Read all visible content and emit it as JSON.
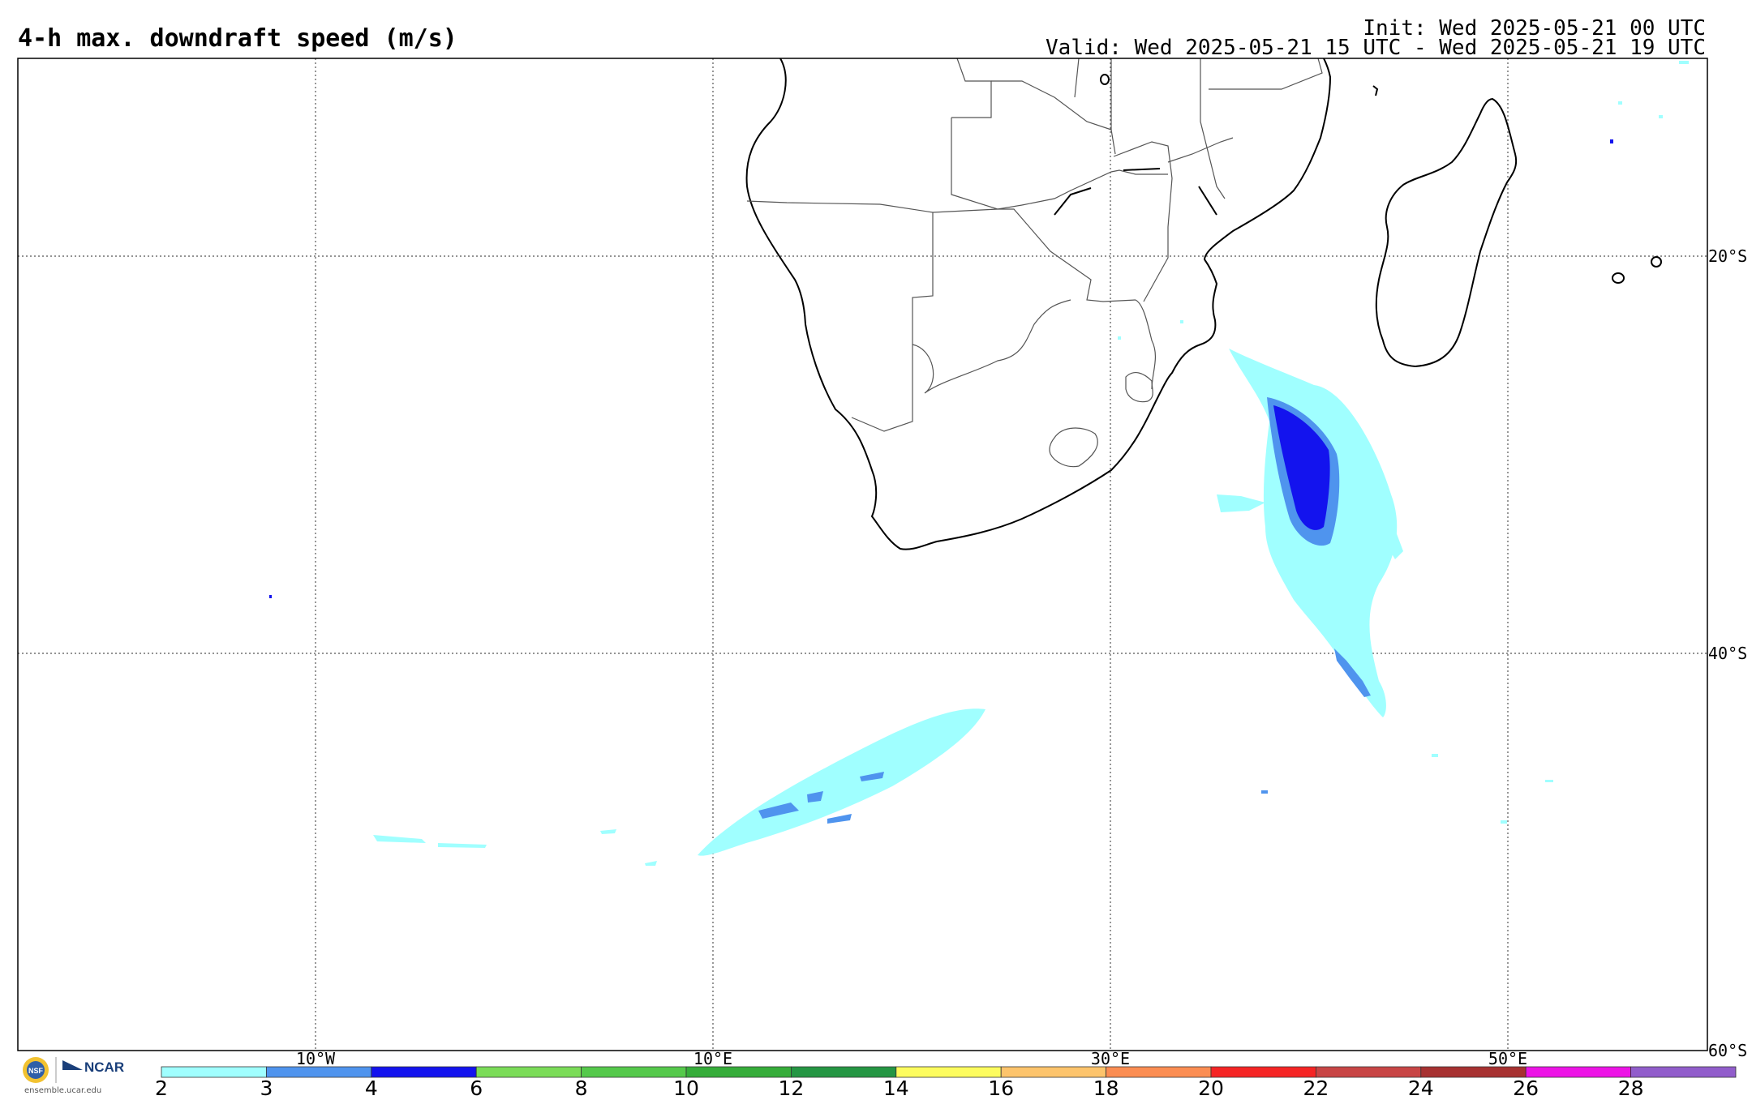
{
  "header": {
    "title": "4-h max. downdraft speed (m/s)",
    "init": "Init: Wed 2025-05-21 00 UTC",
    "valid": "Valid: Wed 2025-05-21 15 UTC - Wed 2025-05-21 19 UTC"
  },
  "map": {
    "lat_labels": [
      "20°S",
      "40°S",
      "60°S"
    ],
    "lon_labels": [
      "10°W",
      "10°E",
      "30°E",
      "50°E"
    ],
    "grid": "dotted",
    "land_outline": "black",
    "features": [
      "southern-africa-coastline",
      "madagascar",
      "country-borders",
      "downdraft-swath-mozambique-channel",
      "downdraft-swath-south-atlantic"
    ]
  },
  "colorbar": {
    "ticks": [
      "2",
      "3",
      "4",
      "6",
      "8",
      "10",
      "12",
      "14",
      "16",
      "18",
      "20",
      "22",
      "24",
      "26",
      "28"
    ],
    "colors": [
      "#a0ffff",
      "#4f94ee",
      "#1313ee",
      "#7bdc58",
      "#55c94b",
      "#36ad3a",
      "#249643",
      "#fdfc5e",
      "#fdc46c",
      "#fb8d52",
      "#f52424",
      "#c84545",
      "#a73131",
      "#ed13e6",
      "#915dcb"
    ]
  },
  "logos": {
    "nsf": "NSF",
    "ncar": "NCAR",
    "url": "ensemble.ucar.edu"
  }
}
